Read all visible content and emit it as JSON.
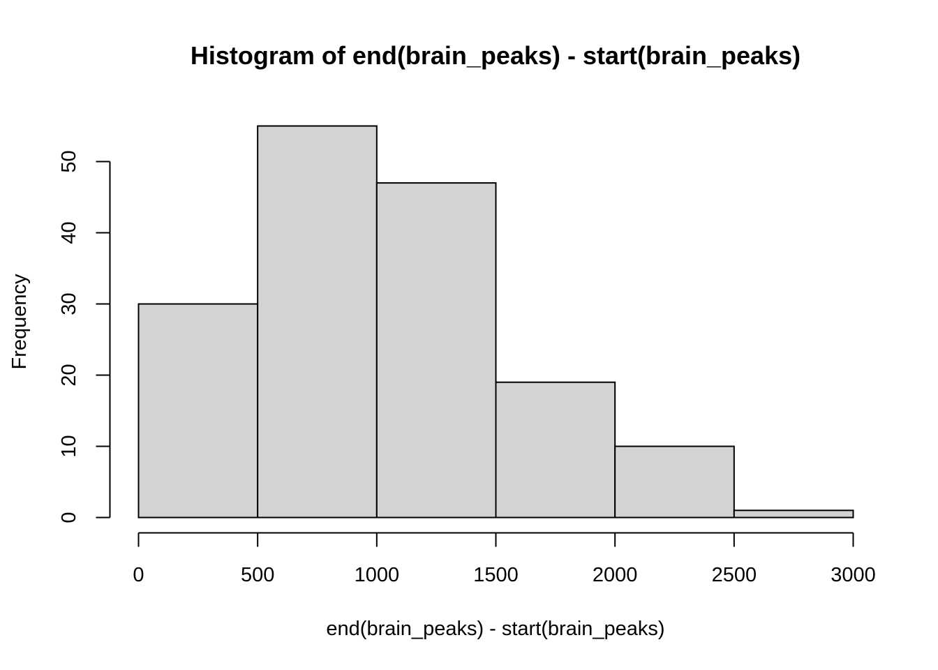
{
  "chart_data": {
    "type": "bar",
    "subtype": "histogram",
    "title": "Histogram of end(brain_peaks) - start(brain_peaks)",
    "xlabel": "end(brain_peaks) - start(brain_peaks)",
    "ylabel": "Frequency",
    "bins": [
      {
        "start": 0,
        "end": 500,
        "count": 30
      },
      {
        "start": 500,
        "end": 1000,
        "count": 55
      },
      {
        "start": 1000,
        "end": 1500,
        "count": 47
      },
      {
        "start": 1500,
        "end": 2000,
        "count": 19
      },
      {
        "start": 2000,
        "end": 2500,
        "count": 10
      },
      {
        "start": 2500,
        "end": 3000,
        "count": 1
      }
    ],
    "xlim": [
      0,
      3000
    ],
    "ylim": [
      0,
      55
    ],
    "x_ticks": [
      0,
      500,
      1000,
      1500,
      2000,
      2500,
      3000
    ],
    "y_ticks": [
      0,
      10,
      20,
      30,
      40,
      50
    ],
    "grid": false,
    "bar_color": "#d3d3d3",
    "edge_color": "#000000"
  }
}
